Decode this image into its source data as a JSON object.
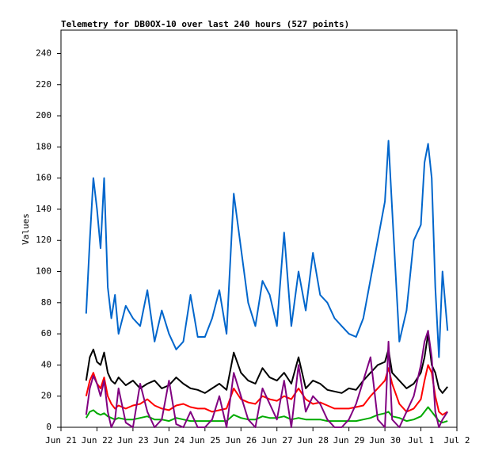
{
  "chart_data": {
    "type": "line",
    "title": "Telemetry for DB0OX-10 over last 240 hours (527 points)",
    "y_label": "Values",
    "x": [
      0.7,
      0.8,
      0.9,
      1.0,
      1.1,
      1.2,
      1.3,
      1.4,
      1.5,
      1.6,
      1.8,
      2.0,
      2.2,
      2.4,
      2.6,
      2.8,
      3.0,
      3.2,
      3.4,
      3.6,
      3.8,
      4.0,
      4.2,
      4.4,
      4.6,
      4.8,
      5.0,
      5.2,
      5.4,
      5.6,
      5.8,
      6.0,
      6.2,
      6.4,
      6.6,
      6.8,
      7.0,
      7.2,
      7.4,
      7.6,
      7.8,
      8.0,
      8.2,
      8.4,
      8.6,
      8.8,
      9.0,
      9.1,
      9.2,
      9.4,
      9.6,
      9.8,
      10.0,
      10.1,
      10.2,
      10.3,
      10.4,
      10.5,
      10.6,
      10.74
    ],
    "series": [
      {
        "color": "#0066cc",
        "values": [
          73,
          120,
          160,
          140,
          115,
          160,
          90,
          70,
          85,
          60,
          78,
          70,
          65,
          88,
          55,
          75,
          60,
          50,
          55,
          85,
          58,
          58,
          70,
          88,
          60,
          150,
          115,
          80,
          65,
          94,
          85,
          65,
          125,
          65,
          100,
          75,
          112,
          85,
          80,
          70,
          65,
          60,
          58,
          70,
          95,
          120,
          145,
          184,
          140,
          55,
          75,
          120,
          130,
          170,
          182,
          160,
          90,
          45,
          100,
          62
        ]
      },
      {
        "color": "#000000",
        "values": [
          30,
          45,
          50,
          42,
          40,
          48,
          35,
          30,
          28,
          32,
          27,
          30,
          25,
          28,
          30,
          25,
          27,
          32,
          28,
          25,
          24,
          22,
          25,
          28,
          24,
          48,
          35,
          30,
          28,
          38,
          32,
          30,
          35,
          28,
          45,
          25,
          30,
          28,
          24,
          23,
          22,
          25,
          24,
          30,
          35,
          40,
          42,
          50,
          35,
          30,
          25,
          28,
          35,
          45,
          60,
          40,
          35,
          25,
          22,
          26
        ]
      },
      {
        "color": "#ff0000",
        "values": [
          20,
          30,
          35,
          28,
          25,
          32,
          20,
          15,
          12,
          14,
          12,
          14,
          15,
          18,
          14,
          12,
          11,
          14,
          15,
          13,
          12,
          12,
          10,
          11,
          12,
          25,
          18,
          16,
          15,
          20,
          18,
          17,
          20,
          18,
          25,
          18,
          15,
          16,
          14,
          12,
          12,
          12,
          13,
          14,
          20,
          25,
          30,
          38,
          28,
          15,
          10,
          12,
          18,
          30,
          40,
          35,
          20,
          10,
          8,
          10
        ]
      },
      {
        "color": "#00aa00",
        "values": [
          6,
          10,
          11,
          9,
          8,
          9,
          7,
          6,
          5,
          6,
          5,
          5,
          6,
          7,
          5,
          5,
          4,
          6,
          5,
          4,
          4,
          4,
          4,
          4,
          4,
          8,
          6,
          5,
          5,
          7,
          6,
          6,
          7,
          5,
          6,
          5,
          5,
          5,
          4,
          4,
          4,
          4,
          4,
          5,
          6,
          8,
          9,
          10,
          7,
          6,
          4,
          5,
          7,
          10,
          13,
          10,
          7,
          4,
          3,
          4
        ]
      },
      {
        "color": "#800080",
        "values": [
          8,
          25,
          33,
          28,
          20,
          30,
          10,
          0,
          5,
          25,
          3,
          0,
          28,
          10,
          0,
          5,
          30,
          2,
          0,
          10,
          0,
          0,
          5,
          20,
          0,
          35,
          20,
          5,
          0,
          25,
          15,
          5,
          30,
          0,
          40,
          10,
          20,
          15,
          5,
          0,
          0,
          5,
          15,
          30,
          45,
          5,
          0,
          55,
          5,
          0,
          10,
          20,
          40,
          55,
          62,
          45,
          10,
          0,
          5,
          10
        ]
      }
    ],
    "xlim": [
      0,
      11
    ],
    "xticks": [
      {
        "value": 0,
        "label": "Jun 21"
      },
      {
        "value": 1,
        "label": "Jun 22"
      },
      {
        "value": 2,
        "label": "Jun 23"
      },
      {
        "value": 3,
        "label": "Jun 24"
      },
      {
        "value": 4,
        "label": "Jun 25"
      },
      {
        "value": 5,
        "label": "Jun 26"
      },
      {
        "value": 6,
        "label": "Jun 27"
      },
      {
        "value": 7,
        "label": "Jun 28"
      },
      {
        "value": 8,
        "label": "Jun 29"
      },
      {
        "value": 9,
        "label": "Jun 30"
      },
      {
        "value": 10,
        "label": "Jul 1"
      },
      {
        "value": 11,
        "label": "Jul 2"
      }
    ],
    "ylim": [
      0,
      255
    ],
    "yticks": [
      0,
      20,
      40,
      60,
      80,
      100,
      120,
      140,
      160,
      180,
      200,
      220,
      240
    ]
  }
}
